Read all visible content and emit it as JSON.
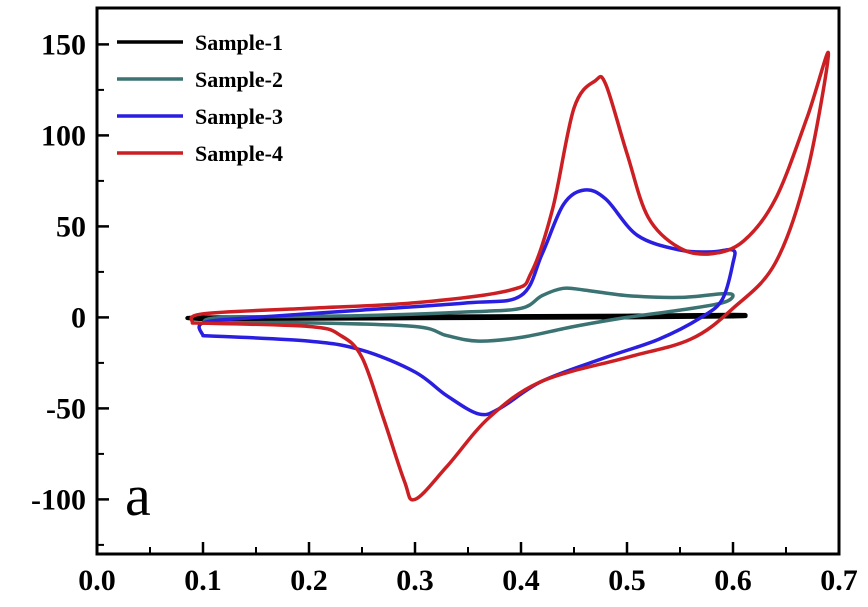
{
  "chart_data": {
    "type": "line",
    "panel_label": "a",
    "xlim": [
      0.0,
      0.7
    ],
    "ylim": [
      -130,
      170
    ],
    "x_ticks": [
      "0.0",
      "0.1",
      "0.2",
      "0.3",
      "0.4",
      "0.5",
      "0.6",
      "0.7"
    ],
    "y_ticks": [
      "150",
      "100",
      "50",
      "0",
      "-50",
      "-100"
    ],
    "legend_position": "top-left",
    "series": [
      {
        "name": "Sample-1",
        "color": "#000000",
        "points": [
          [
            0.1,
            -1
          ],
          [
            0.3,
            -0.5
          ],
          [
            0.5,
            0
          ],
          [
            0.6,
            0.5
          ],
          [
            0.61,
            1
          ],
          [
            0.6,
            1.5
          ],
          [
            0.5,
            1
          ],
          [
            0.3,
            0.5
          ],
          [
            0.1,
            0
          ],
          [
            0.1,
            -1
          ]
        ]
      },
      {
        "name": "Sample-2",
        "color": "#3b7272",
        "points": [
          [
            0.1,
            -3
          ],
          [
            0.2,
            -3
          ],
          [
            0.3,
            -5
          ],
          [
            0.33,
            -10
          ],
          [
            0.36,
            -13
          ],
          [
            0.4,
            -11
          ],
          [
            0.45,
            -5
          ],
          [
            0.5,
            0
          ],
          [
            0.55,
            4
          ],
          [
            0.59,
            8
          ],
          [
            0.6,
            12
          ],
          [
            0.59,
            13
          ],
          [
            0.55,
            11
          ],
          [
            0.5,
            12
          ],
          [
            0.46,
            15
          ],
          [
            0.44,
            16
          ],
          [
            0.42,
            12
          ],
          [
            0.4,
            5
          ],
          [
            0.35,
            3
          ],
          [
            0.25,
            1
          ],
          [
            0.12,
            0
          ],
          [
            0.1,
            -3
          ]
        ]
      },
      {
        "name": "Sample-3",
        "color": "#2a1ee0",
        "points": [
          [
            0.1,
            -10
          ],
          [
            0.2,
            -13
          ],
          [
            0.25,
            -18
          ],
          [
            0.3,
            -30
          ],
          [
            0.33,
            -43
          ],
          [
            0.36,
            -53
          ],
          [
            0.38,
            -50
          ],
          [
            0.42,
            -35
          ],
          [
            0.48,
            -22
          ],
          [
            0.53,
            -12
          ],
          [
            0.57,
            0
          ],
          [
            0.59,
            10
          ],
          [
            0.6,
            30
          ],
          [
            0.6,
            37
          ],
          [
            0.58,
            36
          ],
          [
            0.55,
            37
          ],
          [
            0.51,
            45
          ],
          [
            0.48,
            65
          ],
          [
            0.46,
            70
          ],
          [
            0.44,
            62
          ],
          [
            0.42,
            35
          ],
          [
            0.4,
            12
          ],
          [
            0.35,
            8
          ],
          [
            0.25,
            4
          ],
          [
            0.15,
            0
          ],
          [
            0.1,
            -3
          ],
          [
            0.1,
            -10
          ]
        ]
      },
      {
        "name": "Sample-4",
        "color": "#cc1f24",
        "points": [
          [
            0.09,
            -3
          ],
          [
            0.2,
            -5
          ],
          [
            0.23,
            -10
          ],
          [
            0.25,
            -22
          ],
          [
            0.27,
            -55
          ],
          [
            0.29,
            -90
          ],
          [
            0.3,
            -100
          ],
          [
            0.33,
            -82
          ],
          [
            0.37,
            -55
          ],
          [
            0.42,
            -35
          ],
          [
            0.5,
            -22
          ],
          [
            0.56,
            -12
          ],
          [
            0.6,
            5
          ],
          [
            0.64,
            30
          ],
          [
            0.67,
            80
          ],
          [
            0.69,
            145
          ],
          [
            0.67,
            110
          ],
          [
            0.64,
            65
          ],
          [
            0.61,
            42
          ],
          [
            0.58,
            35
          ],
          [
            0.55,
            38
          ],
          [
            0.52,
            55
          ],
          [
            0.5,
            90
          ],
          [
            0.48,
            128
          ],
          [
            0.47,
            130
          ],
          [
            0.45,
            115
          ],
          [
            0.43,
            60
          ],
          [
            0.41,
            25
          ],
          [
            0.39,
            15
          ],
          [
            0.3,
            8
          ],
          [
            0.2,
            5
          ],
          [
            0.1,
            2
          ],
          [
            0.09,
            -3
          ]
        ]
      }
    ]
  }
}
